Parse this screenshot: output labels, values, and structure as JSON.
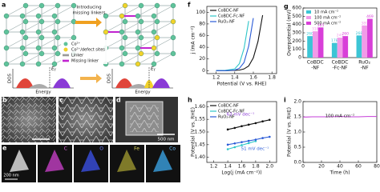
{
  "figure": {
    "panel_labels": [
      "a",
      "b",
      "c",
      "d",
      "e"
    ],
    "schematic": {
      "arrow_text": [
        "Introducing",
        "missing linkers"
      ],
      "legend": [
        "Co²⁺",
        "Co²⁺/defect sites",
        "Linker",
        "Missing linker"
      ],
      "dos_label": "DOS",
      "energy_label": "Energy",
      "fermi": [
        "E",
        "f"
      ]
    },
    "scale_bars": {
      "d": "500 nm",
      "e": "200 nm"
    },
    "map_elements": [
      "C",
      "O",
      "Fe",
      "Co"
    ]
  },
  "chart_data": [
    {
      "label": "f",
      "type": "line",
      "xlabel": "Potential (V vs. RHE)",
      "ylabel": "j (mA cm⁻²)",
      "x": [
        1.2,
        1.3,
        1.4,
        1.45,
        1.5,
        1.55,
        1.6,
        1.65,
        1.7
      ],
      "series": [
        {
          "name": "CoBDC-NF",
          "color": "#111111",
          "values": [
            0,
            0,
            0.5,
            1,
            3,
            8,
            22,
            50,
            95
          ]
        },
        {
          "name": "CoBDC-Fc-NF",
          "color": "#2fc6c9",
          "values": [
            0,
            0.5,
            3,
            12,
            38,
            85,
            null,
            null,
            null
          ]
        },
        {
          "name": "RuO₂-NF",
          "color": "#2a5bd7",
          "values": [
            0,
            0,
            1,
            4,
            14,
            42,
            90,
            null,
            null
          ]
        }
      ],
      "xlim": [
        1.1,
        1.85
      ],
      "xticks": [
        1.2,
        1.4,
        1.6,
        1.8
      ],
      "ylim": [
        -5,
        110
      ],
      "yticks": [
        0,
        20,
        40,
        60,
        80,
        100
      ],
      "legend": "top-left"
    },
    {
      "label": "g",
      "type": "bar",
      "ylabel": "Overpotential (mV)",
      "categories": [
        [
          "CoBDC",
          "-NF"
        ],
        [
          "CoBDC",
          "-Fc-NF"
        ],
        [
          "RuO₂",
          "-NF"
        ]
      ],
      "series": [
        {
          "name": "10 mA cm⁻²",
          "color": "#3cc5d5",
          "values": [
            260,
            178,
            268
          ]
        },
        {
          "name": "100 mA cm⁻²",
          "color": "#f29ae8",
          "values": [
            318,
            241,
            389
          ]
        },
        {
          "name": "500 mA cm⁻²",
          "color": "#d83fd8",
          "values": [
            365,
            260,
            469
          ]
        }
      ],
      "ylim": [
        0,
        600
      ],
      "yticks": [
        0,
        100,
        200,
        300,
        400,
        500,
        600
      ],
      "legend": "top-left"
    },
    {
      "label": "h",
      "type": "line",
      "markers": true,
      "xlabel": "Log(j (mA cm⁻²))",
      "ylabel": "Potential (V vs. RHE)",
      "x": [
        1.4,
        1.5,
        1.6,
        1.7,
        1.8,
        1.9,
        2.0
      ],
      "series": [
        {
          "name": "CoBDC-NF",
          "color": "#111111",
          "values": [
            1.51,
            1.516,
            1.523,
            1.529,
            1.535,
            1.542,
            1.548
          ]
        },
        {
          "name": "CoBDC-Fc-NF",
          "color": "#2fc6c9",
          "values": [
            1.432,
            1.44,
            1.448,
            1.456,
            1.464,
            null,
            null
          ]
        },
        {
          "name": "RuO₂-NF",
          "color": "#2a5bd7",
          "values": [
            1.45,
            1.455,
            1.46,
            1.465,
            1.47,
            1.476,
            1.481
          ]
        }
      ],
      "annotations": [
        {
          "text": "63 mV dec⁻¹",
          "color": "#8a3ad6"
        },
        {
          "text": "51 mV dec⁻¹",
          "color": "#2a5bd7"
        }
      ],
      "xlim": [
        1.1,
        2.1
      ],
      "xticks": [
        1.2,
        1.4,
        1.6,
        1.8,
        {
          "value": 2.0,
          "label": "2.0"
        }
      ],
      "ylim": [
        1.38,
        1.62
      ],
      "yticks": [
        {
          "value": 1.4,
          "label": "1.40"
        },
        1.45,
        {
          "value": 1.5,
          "label": "1.50"
        },
        1.55,
        {
          "value": 1.6,
          "label": "1.60"
        }
      ],
      "legend": "top-left"
    },
    {
      "label": "i",
      "type": "line",
      "xlabel": "Time (h)",
      "ylabel": "Potential (V vs. RHE)",
      "x": [
        0,
        10,
        20,
        30,
        40,
        50,
        60,
        70,
        80
      ],
      "series": [
        {
          "color": "#c63fd8",
          "values": [
            1.49,
            1.5,
            1.5,
            1.5,
            1.51,
            1.5,
            1.5,
            1.51,
            1.51
          ]
        }
      ],
      "annotations": [
        {
          "text": "100 mA cm⁻²",
          "color": "#111111"
        }
      ],
      "xlim": [
        0,
        80
      ],
      "xticks": [
        0,
        20,
        40,
        60,
        80
      ],
      "ylim": [
        0,
        2.0
      ],
      "yticks": [
        {
          "value": 0,
          "label": "0.0"
        },
        0.5,
        {
          "value": 1,
          "label": "1.0"
        },
        1.5,
        {
          "value": 2,
          "label": "2.0"
        }
      ]
    }
  ]
}
